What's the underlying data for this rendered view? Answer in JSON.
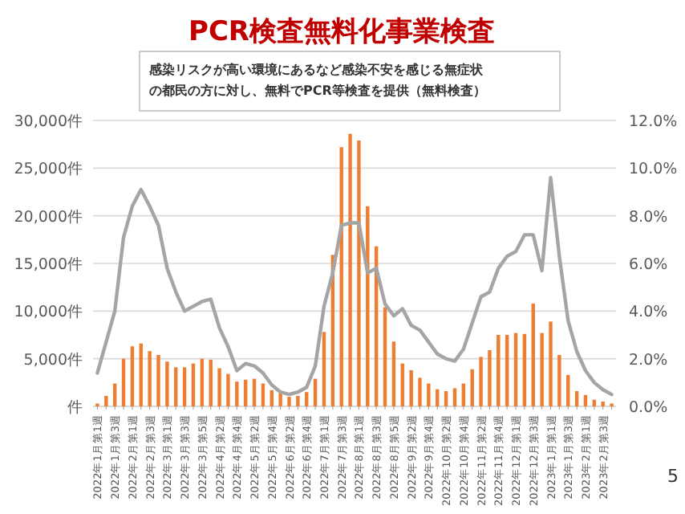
{
  "chart_data": {
    "type": "bar",
    "title": "PCR検査無料化事業検査",
    "subtitle": "感染リスクが高い環境にあるなど感染不安を感じる無症状の都民の方に対し、無料でPCR等検査を提供（無料検査）",
    "categories": [
      "2022年1月第1週",
      null,
      "2022年1月第3週",
      null,
      "2022年2月第1週",
      null,
      "2022年2月第3週",
      null,
      "2022年3月第1週",
      null,
      "2022年3月第3週",
      null,
      "2022年3月第5週",
      null,
      "2022年4月第2週",
      null,
      "2022年4月第4週",
      null,
      "2022年5月第2週",
      null,
      "2022年5月第4週",
      null,
      "2022年6月第2週",
      null,
      "2022年6月第4週",
      null,
      "2022年7月第1週",
      null,
      "2022年7月第3週",
      null,
      "2022年8月第1週",
      null,
      "2022年8月第3週",
      null,
      "2022年8月第5週",
      null,
      "2022年9月第2週",
      null,
      "2022年9月第4週",
      null,
      "2022年10月第2週",
      null,
      "2022年10月第4週",
      null,
      "2022年11月第2週",
      null,
      "2022年11月第4週",
      null,
      "2022年12月第1週",
      null,
      "2022年12月第3週",
      null,
      "2023年1月第1週",
      null,
      "2023年1月第3週",
      null,
      "2023年2月第1週",
      null,
      "2023年2月第3週",
      null
    ],
    "series": [
      {
        "color": "#ed7d31",
        "values": [
          300,
          1100,
          2400,
          5000,
          6300,
          6600,
          5800,
          5400,
          4700,
          4100,
          4100,
          4500,
          5000,
          4900,
          4000,
          3400,
          2600,
          2800,
          2900,
          2400,
          1700,
          1400,
          1000,
          1100,
          1500,
          2900,
          7800,
          15900,
          27200,
          28600,
          27900,
          21000,
          16800,
          10400,
          6800,
          4500,
          3800,
          3000,
          2400,
          1800,
          1600,
          1900,
          2400,
          3900,
          5200,
          5900,
          7500,
          7500,
          7700,
          7600,
          10800,
          7700,
          8900,
          5400,
          3300,
          1600,
          1200,
          700,
          500,
          300
        ]
      },
      {
        "type": "line",
        "axis": "y2",
        "color": "#a5a5a5",
        "values": [
          1.4,
          2.7,
          4.0,
          7.1,
          8.4,
          9.1,
          8.4,
          7.6,
          5.8,
          4.8,
          4.0,
          4.2,
          4.4,
          4.5,
          3.3,
          2.5,
          1.5,
          1.8,
          1.7,
          1.4,
          0.9,
          0.6,
          0.5,
          0.6,
          0.8,
          1.7,
          4.2,
          5.6,
          7.6,
          7.7,
          7.7,
          5.6,
          5.8,
          4.3,
          3.8,
          4.1,
          3.4,
          3.2,
          2.7,
          2.2,
          2.0,
          1.9,
          2.4,
          3.5,
          4.6,
          4.8,
          5.8,
          6.3,
          6.5,
          7.2,
          7.2,
          5.7,
          9.6,
          6.3,
          3.6,
          2.3,
          1.5,
          1.0,
          0.7,
          0.5
        ]
      }
    ],
    "ylim": [
      0,
      30000
    ],
    "yticks": [
      {
        "value": 0,
        "label": "件"
      },
      {
        "value": 5000,
        "label": "5,000件"
      },
      {
        "value": 10000,
        "label": "10,000件"
      },
      {
        "value": 15000,
        "label": "15,000件"
      },
      {
        "value": 20000,
        "label": "20,000件"
      },
      {
        "value": 25000,
        "label": "25,000件"
      },
      {
        "value": 30000,
        "label": "30,000件"
      }
    ],
    "y2lim": [
      0,
      12
    ],
    "y2ticks": [
      {
        "value": 0,
        "label": "0.0%"
      },
      {
        "value": 2,
        "label": "2.0%"
      },
      {
        "value": 4,
        "label": "4.0%"
      },
      {
        "value": 6,
        "label": "6.0%"
      },
      {
        "value": 8,
        "label": "8.0%"
      },
      {
        "value": 10,
        "label": "10.0%"
      },
      {
        "value": 12,
        "label": "12.0%"
      }
    ],
    "grid": "y",
    "annotations": [
      "5"
    ]
  }
}
